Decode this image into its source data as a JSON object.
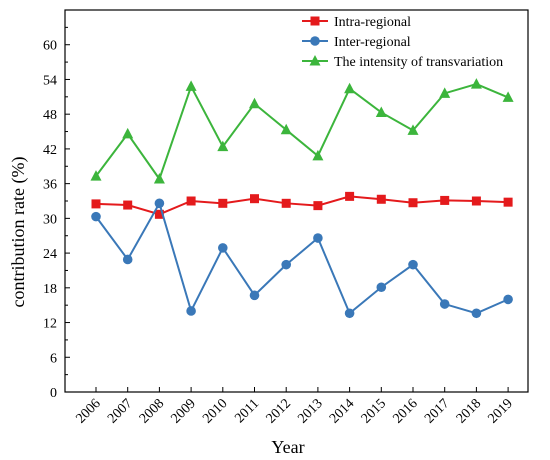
{
  "chart_data": {
    "type": "line",
    "xlabel": "Year",
    "ylabel": "contribution rate (%)",
    "categories": [
      "2006",
      "2007",
      "2008",
      "2009",
      "2010",
      "2011",
      "2012",
      "2013",
      "2014",
      "2015",
      "2016",
      "2017",
      "2018",
      "2019"
    ],
    "ylim": [
      0,
      66
    ],
    "yticks": [
      0,
      6,
      12,
      18,
      24,
      30,
      36,
      42,
      48,
      54,
      60
    ],
    "grid": false,
    "legend_position": "top-right",
    "series": [
      {
        "name": "Intra-regional",
        "color": "#e41a1c",
        "marker": "square",
        "values": [
          32.5,
          32.3,
          30.7,
          33.0,
          32.6,
          33.4,
          32.6,
          32.2,
          33.8,
          33.3,
          32.7,
          33.1,
          33.0,
          32.8
        ]
      },
      {
        "name": "Inter-regional",
        "color": "#3a78b8",
        "marker": "circle",
        "values": [
          30.3,
          22.9,
          32.6,
          14.0,
          24.9,
          16.7,
          22.0,
          26.6,
          13.6,
          18.1,
          22.0,
          15.2,
          13.6,
          16.0
        ]
      },
      {
        "name": "The intensity of transvariation",
        "color": "#3cb53c",
        "marker": "triangle",
        "values": [
          37.3,
          44.6,
          36.8,
          52.8,
          42.4,
          49.8,
          45.3,
          40.8,
          52.4,
          48.3,
          45.2,
          51.6,
          53.2,
          50.9
        ]
      }
    ]
  }
}
